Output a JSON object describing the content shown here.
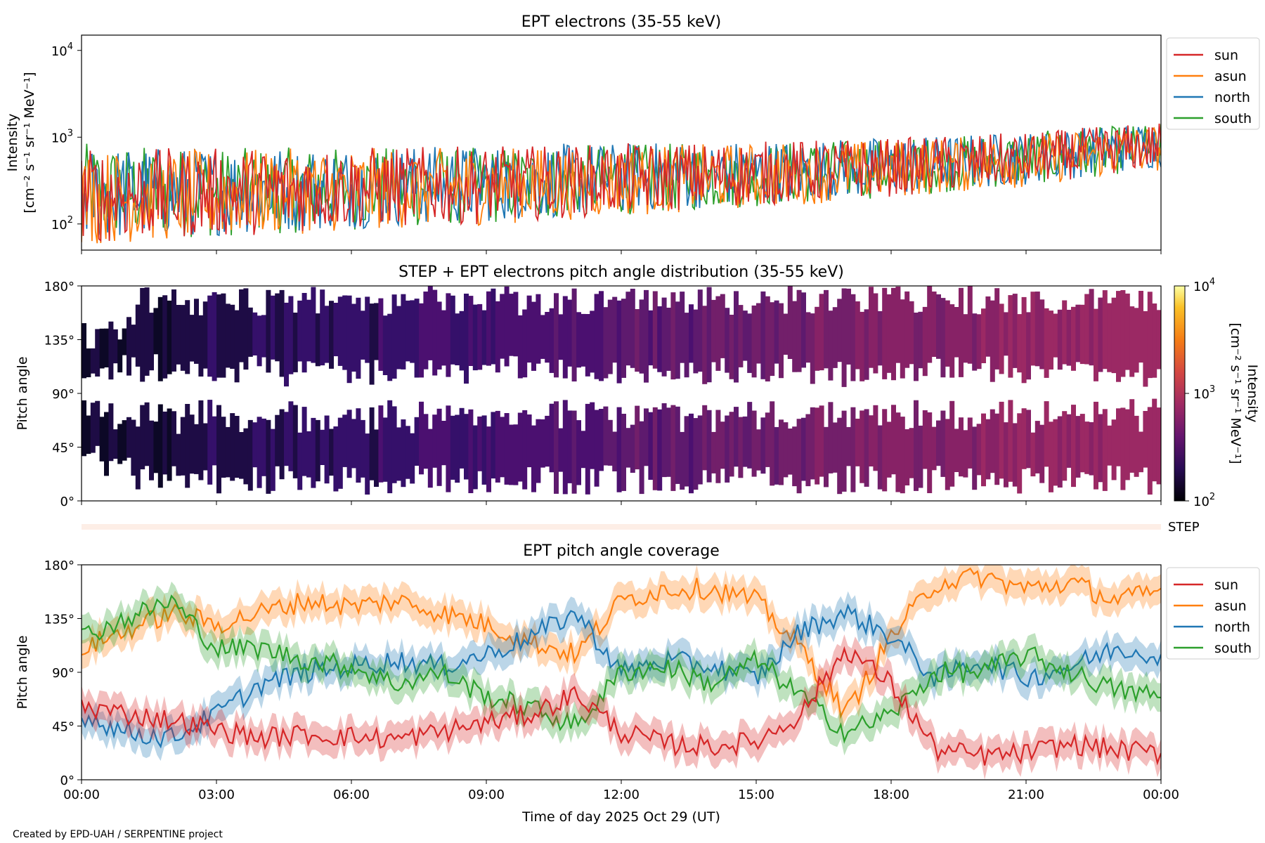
{
  "credit": "Created by EPD-UAH / SERPENTINE project",
  "x_axis": {
    "label": "Time of day 2025 Oct 29 (UT)",
    "ticks": [
      "00:00",
      "03:00",
      "06:00",
      "09:00",
      "12:00",
      "15:00",
      "18:00",
      "21:00",
      "00:00"
    ],
    "range_hours": [
      0,
      24
    ]
  },
  "colors": {
    "sun": "#d62728",
    "asun": "#ff7f0e",
    "north": "#1f77b4",
    "south": "#2ca02c"
  },
  "chart_data": [
    {
      "type": "line",
      "title": "EPT electrons (35-55 keV)",
      "ylabel_line1": "Intensity",
      "ylabel_line2": "[cm⁻² s⁻¹ sr⁻¹ MeV⁻¹]",
      "yscale": "log",
      "ylim": [
        50,
        15000
      ],
      "yticks": [
        {
          "value": 100,
          "base": "10",
          "exp": "2"
        },
        {
          "value": 1000,
          "base": "10",
          "exp": "3"
        },
        {
          "value": 10000,
          "base": "10",
          "exp": "4"
        }
      ],
      "legend": [
        "sun",
        "asun",
        "north",
        "south"
      ],
      "legend_position": "outside-right",
      "x_hours": [
        0,
        3,
        6,
        9,
        12,
        15,
        18,
        21,
        24
      ],
      "series_trend": [
        {
          "name": "sun",
          "values": [
            210,
            230,
            260,
            280,
            330,
            380,
            450,
            560,
            800
          ]
        },
        {
          "name": "asun",
          "values": [
            200,
            220,
            250,
            270,
            310,
            360,
            430,
            530,
            760
          ]
        },
        {
          "name": "north",
          "values": [
            220,
            240,
            265,
            290,
            340,
            390,
            460,
            570,
            820
          ]
        },
        {
          "name": "south",
          "values": [
            240,
            230,
            255,
            275,
            325,
            370,
            440,
            560,
            780
          ]
        }
      ]
    },
    {
      "type": "heatmap",
      "title": "STEP + EPT electrons pitch angle distribution (35-55 keV)",
      "ylabel": "Pitch angle",
      "ylim": [
        0,
        180
      ],
      "yticks": [
        "0°",
        "45°",
        "90°",
        "135°",
        "180°"
      ],
      "colorbar": {
        "label_line1": "Intensity",
        "label_line2": "[cm⁻² s⁻¹ sr⁻¹ MeV⁻¹]",
        "scale": "log",
        "range": [
          100,
          10000
        ],
        "ticks": [
          {
            "base": "10",
            "exp": "2"
          },
          {
            "base": "10",
            "exp": "3"
          },
          {
            "base": "10",
            "exp": "4"
          }
        ],
        "colormap": "inferno"
      }
    },
    {
      "type": "heatmap",
      "title": "",
      "label": "STEP"
    },
    {
      "type": "area",
      "title": "EPT pitch angle coverage",
      "ylabel": "Pitch angle",
      "ylim": [
        0,
        180
      ],
      "yticks": [
        "0°",
        "45°",
        "90°",
        "135°",
        "180°"
      ],
      "legend": [
        "sun",
        "asun",
        "north",
        "south"
      ],
      "legend_position": "outside-right",
      "x_hours": [
        0,
        1,
        2,
        3,
        4,
        5,
        6,
        7,
        8,
        9,
        10,
        11,
        12,
        13,
        14,
        15,
        16,
        17,
        18,
        19,
        20,
        21,
        22,
        23,
        24
      ],
      "series": [
        {
          "name": "sun",
          "values": [
            62,
            55,
            50,
            42,
            35,
            38,
            36,
            34,
            40,
            48,
            55,
            72,
            40,
            30,
            28,
            32,
            55,
            110,
            80,
            25,
            20,
            22,
            30,
            25,
            22
          ]
        },
        {
          "name": "asun",
          "values": [
            110,
            125,
            140,
            130,
            140,
            150,
            145,
            150,
            140,
            130,
            115,
            105,
            150,
            160,
            160,
            150,
            110,
            55,
            120,
            165,
            170,
            160,
            165,
            150,
            158
          ]
        },
        {
          "name": "north",
          "values": [
            55,
            40,
            35,
            55,
            80,
            90,
            95,
            100,
            95,
            105,
            120,
            140,
            90,
            100,
            95,
            85,
            125,
            140,
            120,
            85,
            100,
            85,
            95,
            110,
            105
          ]
        },
        {
          "name": "south",
          "values": [
            120,
            135,
            150,
            110,
            110,
            100,
            95,
            80,
            90,
            70,
            60,
            45,
            90,
            95,
            80,
            100,
            70,
            40,
            55,
            90,
            90,
            105,
            90,
            75,
            70
          ]
        }
      ],
      "band_halfwidth": 12
    }
  ]
}
